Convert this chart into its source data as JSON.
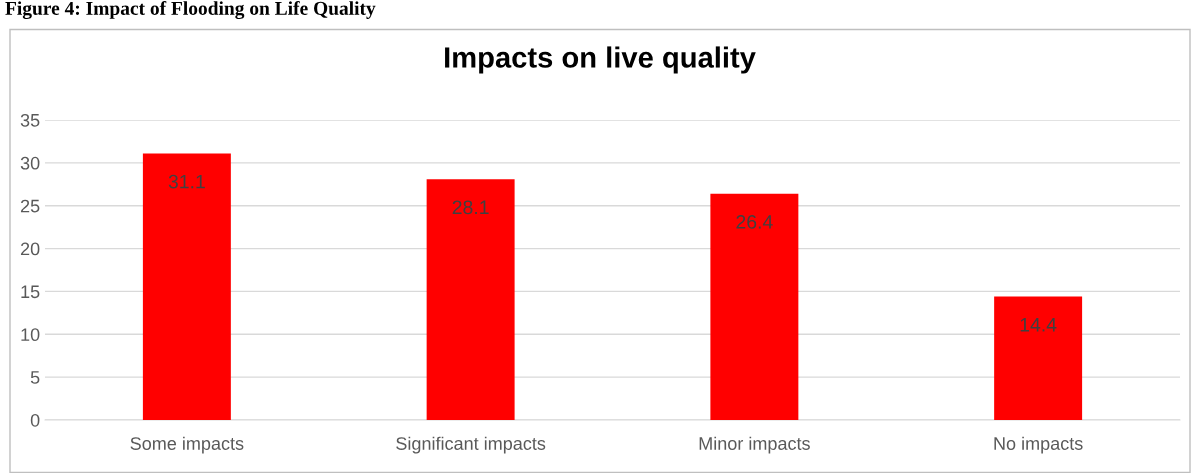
{
  "chart_data": {
    "type": "bar",
    "title": "Impacts on live quality",
    "annotations": [
      "Figure 4: Impact of Flooding on Life Quality"
    ],
    "categories": [
      "Some impacts",
      "Significant impacts",
      "Minor impacts",
      "No impacts"
    ],
    "values": [
      31.1,
      28.1,
      26.4,
      14.4
    ],
    "color": "#ff0000",
    "ylim": [
      0,
      35
    ],
    "yticks": [
      0,
      5,
      10,
      15,
      20,
      25,
      30,
      35
    ],
    "grid": "y",
    "data_labels": true,
    "legend": false
  }
}
